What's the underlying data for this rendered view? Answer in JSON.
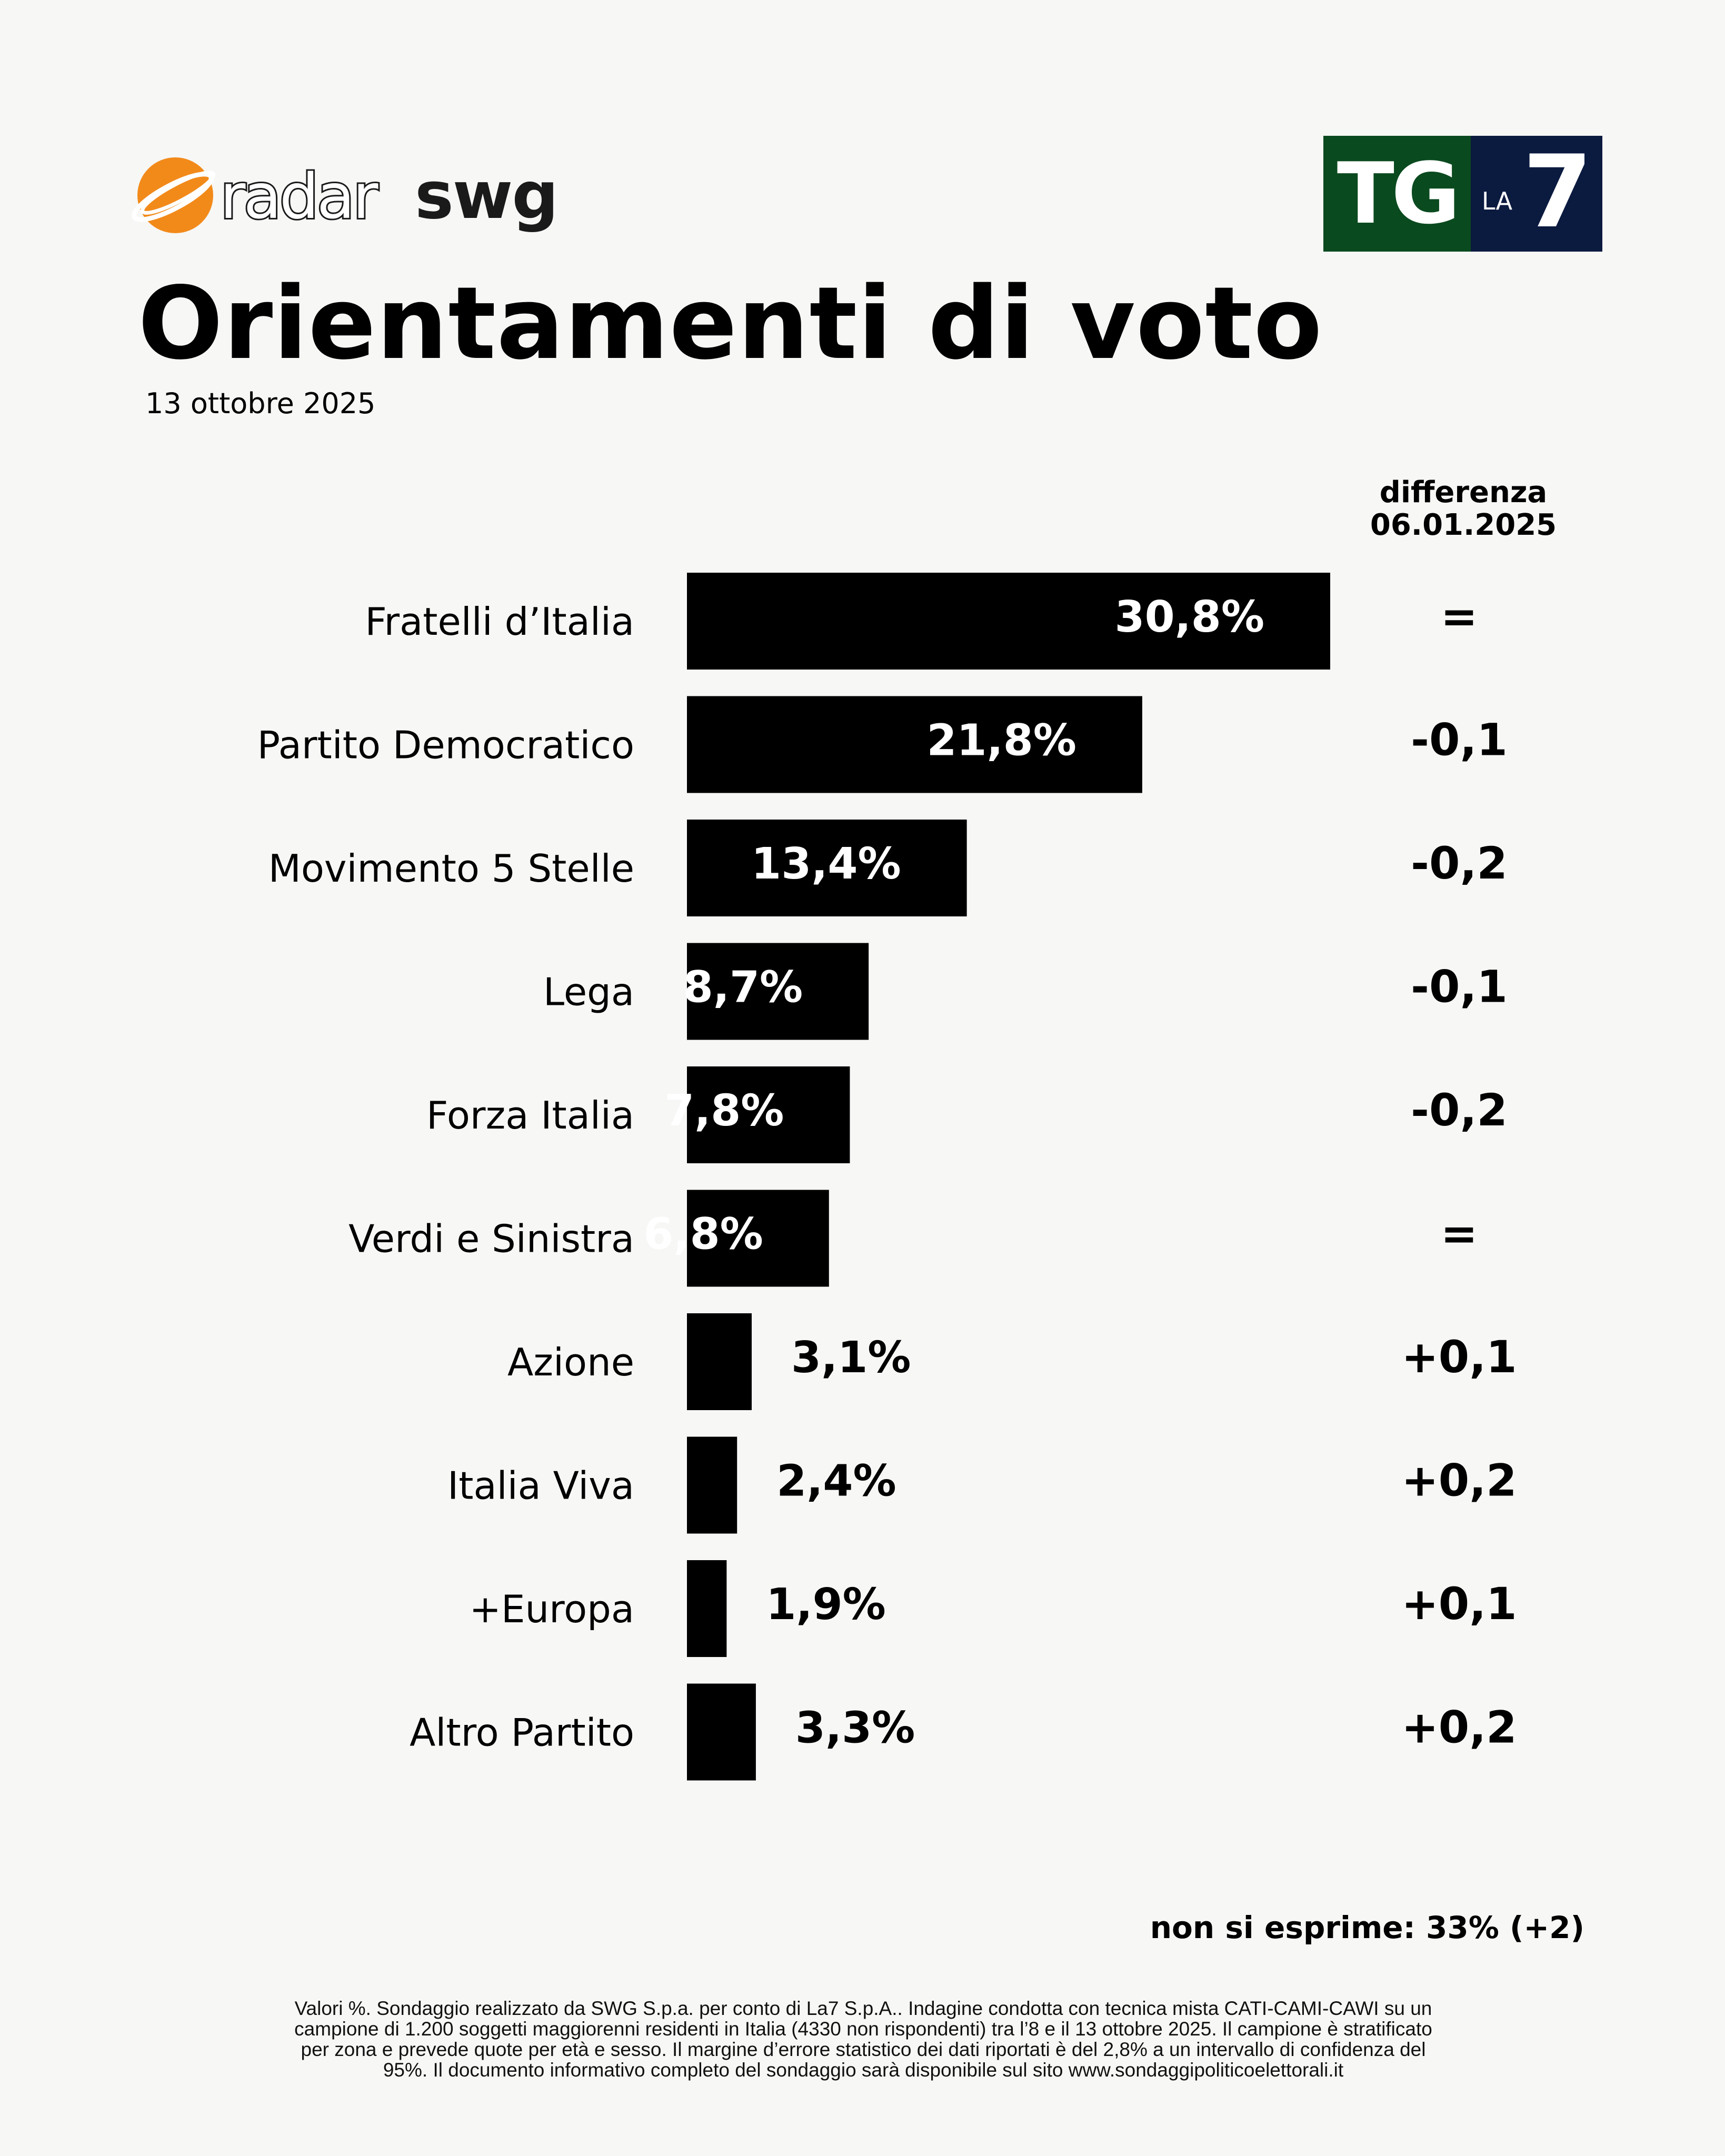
{
  "header": {
    "radar_text": "radar",
    "swg_text": "swg",
    "tg_text": "TG",
    "la_text": "LA",
    "seven_text": "7",
    "title": "Orientamenti di voto",
    "date": "13 ottobre 2025"
  },
  "colors": {
    "bar": "#000000",
    "tg_green": "#0a4a1f",
    "tg_navy": "#0b1a3f",
    "logo_orange": "#f28a1a"
  },
  "chart_data": {
    "type": "bar",
    "orientation": "horizontal",
    "unit": "%",
    "categories": [
      "Fratelli d’Italia",
      "Partito Democratico",
      "Movimento 5 Stelle",
      "Lega",
      "Forza Italia",
      "Verdi e Sinistra",
      "Azione",
      "Italia Viva",
      "+Europa",
      "Altro Partito"
    ],
    "values": [
      30.8,
      21.8,
      13.4,
      8.7,
      7.8,
      6.8,
      3.1,
      2.4,
      1.9,
      3.3
    ],
    "value_labels": [
      "30,8%",
      "21,8%",
      "13,4%",
      "8,7%",
      "7,8%",
      "6,8%",
      "3,1%",
      "2,4%",
      "1,9%",
      "3,3%"
    ],
    "difference_header": [
      "differenza",
      "06.01.2025"
    ],
    "differences": [
      "=",
      "-0,1",
      "-0,2",
      "-0,1",
      "-0,2",
      "=",
      "+0,1",
      "+0,2",
      "+0,1",
      "+0,2"
    ],
    "xlim": [
      0,
      30.8
    ]
  },
  "footer": {
    "non_si_esprime": "non si esprime: 33% (+2)",
    "note_lines": [
      "Valori %. Sondaggio realizzato da SWG S.p.a. per conto di La7 S.p.A.. Indagine condotta con tecnica mista CATI-CAMI-CAWI su un",
      "campione di 1.200 soggetti maggiorenni residenti in Italia (4330 non rispondenti) tra l’8 e il 13 ottobre 2025. Il campione è stratificato",
      "per zona e prevede quote per età e sesso. Il margine d’errore statistico dei dati riportati è del 2,8% a un intervallo di confidenza del",
      "95%. Il documento informativo completo del sondaggio sarà disponibile sul sito www.sondaggipoliticoelettorali.it"
    ]
  }
}
